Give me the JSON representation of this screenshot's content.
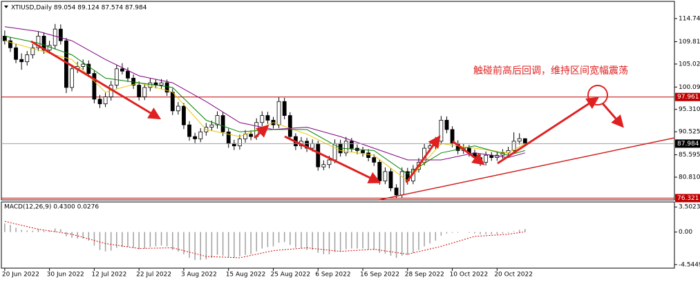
{
  "chart_data": {
    "type": "candlestick",
    "title": "XTIUSD,Daily  89.054 89.124 87.574 87.984",
    "annotation": "触碰前高后回调，维持区间宽幅震荡",
    "bull_color": "#ffffff",
    "bear_color": "#000000",
    "ylim": [
      75.94,
      118.43
    ],
    "yticks": [
      114.74,
      109.81,
      105.02,
      100.09,
      {
        "value": 95.31,
        "label": "95.310"
      },
      90.525,
      85.595,
      {
        "value": 80.81,
        "label": "80.810"
      }
    ],
    "xlim": [
      -0.6,
      119.7
    ],
    "xticks": [
      {
        "value": 0,
        "label": "20 Jun 2022"
      },
      {
        "value": 8,
        "label": "30 Jun 2022"
      },
      {
        "value": 16,
        "label": "12 Jul 2022"
      },
      {
        "value": 24,
        "label": "22 Jul 2022"
      },
      {
        "value": 32,
        "label": "3 Aug 2022"
      },
      {
        "value": 40,
        "label": "15 Aug 2022"
      },
      {
        "value": 48,
        "label": "25 Aug 2022"
      },
      {
        "value": 56,
        "label": "6 Sep 2022"
      },
      {
        "value": 64,
        "label": "16 Sep 2022"
      },
      {
        "value": 72,
        "label": "28 Sep 2022"
      },
      {
        "value": 80,
        "label": "10 Oct 2022"
      },
      {
        "value": 88,
        "label": "20 Oct 2022"
      }
    ],
    "levels": [
      {
        "value": 97.961,
        "color": "#c00000"
      },
      {
        "value": 76.321,
        "color": "#c00000"
      }
    ],
    "candles": [
      [
        111,
        112.2,
        109.2,
        110
      ],
      [
        110,
        110.8,
        107.6,
        108.5
      ],
      [
        108.5,
        109.3,
        105.2,
        106
      ],
      [
        106,
        107.3,
        103.8,
        105.5
      ],
      [
        105.5,
        107.8,
        104.7,
        107
      ],
      [
        107,
        109.3,
        106.2,
        108.5
      ],
      [
        108.5,
        112,
        107.8,
        111
      ],
      [
        111,
        111.8,
        107.2,
        108
      ],
      [
        108,
        110,
        107.2,
        109
      ],
      [
        109,
        113.6,
        108.3,
        112.5
      ],
      [
        112.5,
        113.5,
        109.2,
        110
      ],
      [
        110,
        110.6,
        98.8,
        100
      ],
      [
        100,
        104.9,
        99.2,
        104
      ],
      [
        104,
        105.5,
        103.1,
        104.5
      ],
      [
        104.5,
        106,
        103.8,
        105
      ],
      [
        105,
        105.8,
        102.2,
        103
      ],
      [
        103,
        103.6,
        96.6,
        97.5
      ],
      [
        97.5,
        98.4,
        95.6,
        96.5
      ],
      [
        96.5,
        98.9,
        95.8,
        98
      ],
      [
        98,
        101.4,
        97.2,
        100.5
      ],
      [
        100.5,
        104.8,
        99.8,
        104
      ],
      [
        104,
        105.2,
        102.8,
        103.5
      ],
      [
        103.5,
        104.3,
        101.2,
        102
      ],
      [
        102,
        102.8,
        99.7,
        100.5
      ],
      [
        100.5,
        101.3,
        97.2,
        98
      ],
      [
        98,
        100.8,
        97.3,
        100
      ],
      [
        100,
        101.9,
        99.2,
        101
      ],
      [
        101,
        101.8,
        99.8,
        100.5
      ],
      [
        100.5,
        101.8,
        99.7,
        101
      ],
      [
        101,
        101.7,
        98.2,
        99
      ],
      [
        99,
        99.8,
        94.1,
        95
      ],
      [
        95,
        96.9,
        94.2,
        96
      ],
      [
        96,
        96.7,
        91.1,
        92
      ],
      [
        92,
        92.8,
        88.6,
        89.5
      ],
      [
        89.5,
        90.3,
        88.1,
        89
      ],
      [
        89,
        91.3,
        88.3,
        90.5
      ],
      [
        90.5,
        92.4,
        89.7,
        91.5
      ],
      [
        91.5,
        92.9,
        90.8,
        92
      ],
      [
        92,
        94.9,
        91.2,
        94
      ],
      [
        94,
        94.8,
        89.6,
        90.5
      ],
      [
        90.5,
        91.2,
        87.1,
        88
      ],
      [
        88,
        88.8,
        86.6,
        87.5
      ],
      [
        87.5,
        89.9,
        86.7,
        89
      ],
      [
        89,
        90.9,
        88.2,
        90
      ],
      [
        90,
        90.8,
        88.7,
        89.5
      ],
      [
        89.5,
        93.4,
        88.8,
        92.5
      ],
      [
        92.5,
        94.9,
        91.7,
        94
      ],
      [
        94,
        94.8,
        92.2,
        93
      ],
      [
        93,
        93.7,
        91.2,
        92
      ],
      [
        92,
        97.9,
        91.3,
        97
      ],
      [
        97,
        97.8,
        93.2,
        94
      ],
      [
        94,
        94.7,
        88.7,
        89.5
      ],
      [
        89.5,
        90.2,
        86.6,
        87.5
      ],
      [
        87.5,
        89.4,
        86.8,
        88.5
      ],
      [
        88.5,
        89.2,
        86.2,
        87
      ],
      [
        87,
        88.9,
        86.3,
        88
      ],
      [
        88,
        88.6,
        82.2,
        83
      ],
      [
        83,
        84.4,
        82.3,
        83.5
      ],
      [
        83.5,
        85.4,
        82.7,
        84.5
      ],
      [
        84.5,
        88.9,
        83.8,
        88
      ],
      [
        88,
        88.8,
        85.2,
        86
      ],
      [
        86,
        89.4,
        85.3,
        88.5
      ],
      [
        88.5,
        89.2,
        86.2,
        87
      ],
      [
        87,
        87.8,
        85.7,
        86.5
      ],
      [
        86.5,
        87.3,
        85.2,
        86
      ],
      [
        86,
        86.8,
        84.2,
        85
      ],
      [
        85,
        85.7,
        83.2,
        84
      ],
      [
        84,
        84.6,
        79.2,
        80
      ],
      [
        80,
        82.9,
        79.3,
        82
      ],
      [
        82,
        82.7,
        77.8,
        78.5
      ],
      [
        78.5,
        79.3,
        76.3,
        77
      ],
      [
        77,
        82.9,
        76.4,
        82
      ],
      [
        82,
        82.8,
        79.2,
        80
      ],
      [
        80,
        83.4,
        79.3,
        82.5
      ],
      [
        82.5,
        84.9,
        81.8,
        84
      ],
      [
        84,
        87.9,
        83.3,
        87
      ],
      [
        87,
        88.4,
        86.2,
        87.5
      ],
      [
        87.5,
        89.4,
        86.8,
        88.5
      ],
      [
        88.5,
        93.9,
        87.8,
        93
      ],
      [
        93,
        93.8,
        90.2,
        91
      ],
      [
        91,
        91.7,
        87.2,
        88
      ],
      [
        88,
        88.7,
        85.7,
        86.5
      ],
      [
        86.5,
        87.9,
        85.8,
        87
      ],
      [
        87,
        87.7,
        85.2,
        86
      ],
      [
        86,
        86.7,
        84.2,
        85
      ],
      [
        85,
        85.8,
        83.2,
        84
      ],
      [
        84,
        86.3,
        83.3,
        85.5
      ],
      [
        85.5,
        86.2,
        84.3,
        85
      ],
      [
        85,
        86.3,
        84.3,
        85.5
      ],
      [
        85.5,
        86.8,
        84.8,
        86
      ],
      [
        86,
        87.3,
        85.2,
        86.5
      ],
      [
        86.5,
        90.4,
        85.8,
        88.5
      ],
      [
        88.5,
        90.2,
        87.8,
        89.054
      ],
      [
        89.054,
        89.124,
        87.574,
        87.984
      ]
    ],
    "series": [
      {
        "color": "#e6c800",
        "x": [
          0,
          6,
          12,
          18,
          24,
          30,
          36,
          42,
          48,
          54,
          60,
          66,
          72,
          78,
          84,
          90,
          93
        ],
        "values": [
          110,
          108,
          106,
          99,
          101,
          99,
          91,
          89.5,
          92.5,
          90,
          86.5,
          85.5,
          80,
          88,
          87,
          86,
          88
        ]
      },
      {
        "color": "#008000",
        "x": [
          0,
          6,
          12,
          18,
          24,
          30,
          36,
          42,
          48,
          54,
          60,
          66,
          72,
          78,
          84,
          90,
          93
        ],
        "values": [
          111,
          109.5,
          107,
          102,
          101,
          100,
          93,
          90.5,
          91,
          91,
          87,
          86.5,
          81.5,
          86,
          87.5,
          85.5,
          86.5
        ]
      },
      {
        "color": "#800080",
        "x": [
          0,
          6,
          12,
          18,
          24,
          30,
          36,
          42,
          48,
          54,
          60,
          66,
          72,
          78,
          84,
          90,
          93
        ],
        "values": [
          113,
          112,
          110,
          106,
          102.5,
          101,
          97,
          92.5,
          91,
          91.5,
          89.5,
          87,
          84.5,
          84.5,
          86,
          85,
          86
        ]
      }
    ],
    "macd": {
      "title": "MACD(12,26,9) 0.4300 0.0276",
      "ylim": [
        -5.04,
        4.2
      ],
      "yticks": [
        3.5023,
        {
          "value": 0,
          "label": "0.00"
        },
        -4.5449
      ],
      "color": "#a0a0a0",
      "values": [
        1.2,
        1.0,
        0.6,
        0.3,
        0.2,
        0.2,
        0.4,
        0.2,
        0.2,
        0.5,
        0.4,
        -0.6,
        -0.8,
        -0.9,
        -0.9,
        -1.2,
        -1.9,
        -2.5,
        -2.7,
        -2.6,
        -2.2,
        -2.1,
        -2.1,
        -2.2,
        -2.4,
        -2.3,
        -2.1,
        -2.0,
        -1.9,
        -2.0,
        -2.5,
        -2.7,
        -3.1,
        -3.6,
        -3.9,
        -3.9,
        -3.8,
        -3.6,
        -3.2,
        -3.3,
        -3.5,
        -3.6,
        -3.4,
        -3.2,
        -3.1,
        -2.7,
        -2.3,
        -2.1,
        -2.0,
        -1.5,
        -1.4,
        -1.8,
        -2.2,
        -2.3,
        -2.5,
        -2.5,
        -2.9,
        -3.1,
        -3.1,
        -2.8,
        -2.7,
        -2.4,
        -2.3,
        -2.3,
        -2.3,
        -2.4,
        -2.5,
        -2.9,
        -3.0,
        -3.3,
        -3.6,
        -3.3,
        -3.2,
        -2.9,
        -2.5,
        -2.0,
        -1.6,
        -1.2,
        -0.5,
        -0.2,
        -0.1,
        -0.1,
        0.0,
        -0.1,
        -0.2,
        -0.3,
        -0.3,
        -0.3,
        -0.3,
        -0.2,
        -0.1,
        0.1,
        0.3,
        0.43
      ],
      "signal": {
        "color": "#d00000",
        "x": [
          0,
          6,
          12,
          18,
          24,
          30,
          36,
          42,
          48,
          54,
          60,
          66,
          72,
          78,
          84,
          90,
          93
        ],
        "values": [
          1.5,
          0.4,
          -0.3,
          -1.6,
          -2.3,
          -2.2,
          -3.4,
          -3.6,
          -2.6,
          -2.2,
          -2.7,
          -2.4,
          -3.1,
          -2.0,
          -0.6,
          -0.3,
          0.0276
        ]
      }
    }
  }
}
